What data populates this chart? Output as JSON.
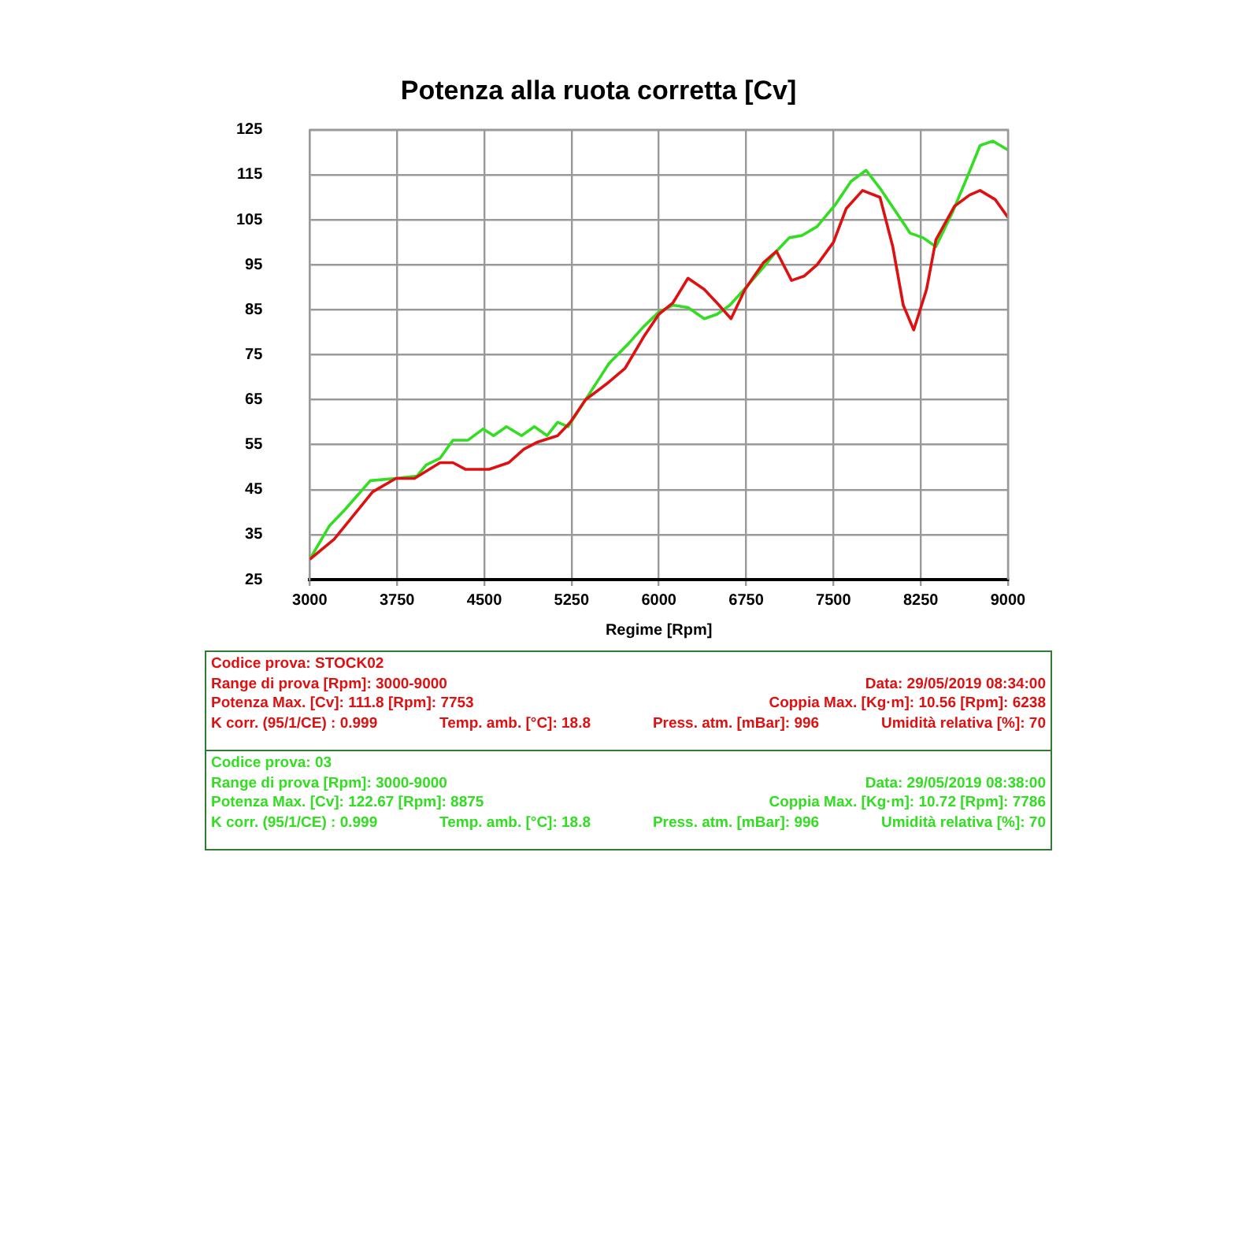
{
  "chart_data": {
    "type": "line",
    "title": "Potenza alla ruota corretta [Cv]",
    "xlabel": "Regime [Rpm]",
    "xlim": [
      3000,
      9000
    ],
    "xticks": [
      3000,
      3750,
      4500,
      5250,
      6000,
      6750,
      7500,
      8250,
      9000
    ],
    "ylim": [
      25,
      125
    ],
    "yticks": [
      25,
      35,
      45,
      55,
      65,
      75,
      85,
      95,
      105,
      115,
      125
    ],
    "grid": true,
    "legend": false,
    "marker": "none",
    "line_style": "solid",
    "series": [
      {
        "color": "#dd1111",
        "x": [
          3000,
          3210,
          3320,
          3540,
          3740,
          3900,
          4120,
          4230,
          4340,
          4540,
          4710,
          4840,
          4950,
          5130,
          5240,
          5370,
          5550,
          5710,
          5870,
          6000,
          6120,
          6250,
          6390,
          6500,
          6620,
          6740,
          6900,
          7010,
          7140,
          7250,
          7360,
          7500,
          7610,
          7750,
          7900,
          8010,
          8100,
          8190,
          8300,
          8380,
          8540,
          8670,
          8760,
          8890,
          9000
        ],
        "values": [
          29.5,
          34,
          37.5,
          44.5,
          47.5,
          47.5,
          51,
          51,
          49.5,
          49.5,
          51,
          54,
          55.5,
          57,
          60,
          65,
          68.5,
          72,
          79,
          84,
          86.5,
          92,
          89.5,
          86.5,
          83,
          89.5,
          95.5,
          98,
          91.5,
          92.5,
          95,
          100,
          107.5,
          111.5,
          110,
          99,
          86,
          80.5,
          89.5,
          100.5,
          108,
          110.5,
          111.5,
          109.5,
          105.5
        ]
      },
      {
        "color": "#33dd22",
        "x": [
          3000,
          3170,
          3300,
          3520,
          3740,
          3920,
          4000,
          4120,
          4230,
          4360,
          4490,
          4580,
          4690,
          4820,
          4930,
          5040,
          5130,
          5220,
          5370,
          5570,
          5740,
          5860,
          6000,
          6120,
          6250,
          6390,
          6500,
          6610,
          6750,
          6900,
          7010,
          7120,
          7230,
          7360,
          7520,
          7650,
          7780,
          7900,
          8030,
          8160,
          8270,
          8380,
          8520,
          8650,
          8760,
          8870,
          9000
        ],
        "values": [
          29.5,
          37,
          40.5,
          47,
          47.5,
          48,
          50.5,
          52,
          56,
          56,
          58.5,
          57,
          59,
          57,
          59,
          57,
          60,
          59,
          65,
          73,
          77.5,
          81,
          84.5,
          86,
          85.5,
          83,
          84,
          86,
          90,
          94.5,
          98,
          101,
          101.5,
          103.5,
          108.5,
          113.5,
          116,
          112,
          107,
          102,
          101,
          99,
          106.5,
          114.5,
          121.5,
          122.5,
          120.5
        ]
      }
    ],
    "annotations": [
      "Codice prova: STOCK02",
      "Range di prova [Rpm]: 3000-9000",
      "Data: 29/05/2019   08:34:00",
      "Potenza Max. [Cv]: 111.8   [Rpm]: 7753",
      "Coppia Max. [Kg·m]: 10.56   [Rpm]: 6238",
      "K corr. (95/1/CE) : 0.999",
      "Temp. amb. [°C]: 18.8",
      "Press. atm. [mBar]: 996",
      "Umidità relativa [%]: 70",
      "Codice prova: 03",
      "Range di prova [Rpm]: 3000-9000",
      "Data: 29/05/2019   08:38:00",
      "Potenza Max. [Cv]: 122.67   [Rpm]: 8875",
      "Coppia Max. [Kg·m]: 10.72   [Rpm]: 7786",
      "K corr. (95/1/CE) : 0.999",
      "Temp. amb. [°C]: 18.8",
      "Press. atm. [mBar]: 996",
      "Umidità relativa [%]: 70"
    ]
  }
}
